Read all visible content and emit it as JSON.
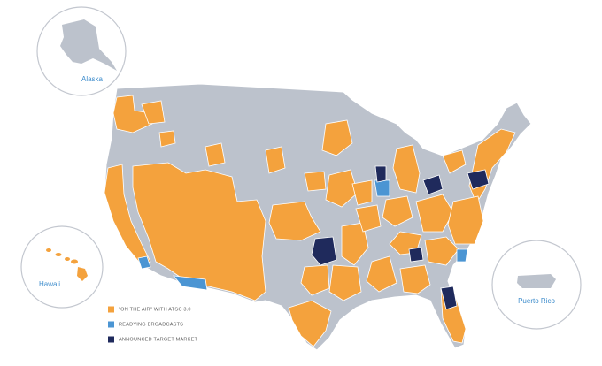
{
  "map": {
    "base_color": "#bcc2cc",
    "border_color": "#ffffff"
  },
  "insets": [
    {
      "label": "Alaska"
    },
    {
      "label": "Hawaii"
    },
    {
      "label": "Puerto Rico"
    }
  ],
  "legend": [
    {
      "label": "\"ON THE AIR\" WITH ATSC 3.0",
      "color": "#f4a23d"
    },
    {
      "label": "READYING BROADCASTS",
      "color": "#4b95d3"
    },
    {
      "label": "ANNOUNCED TARGET MARKET",
      "color": "#1f2a5c"
    }
  ]
}
